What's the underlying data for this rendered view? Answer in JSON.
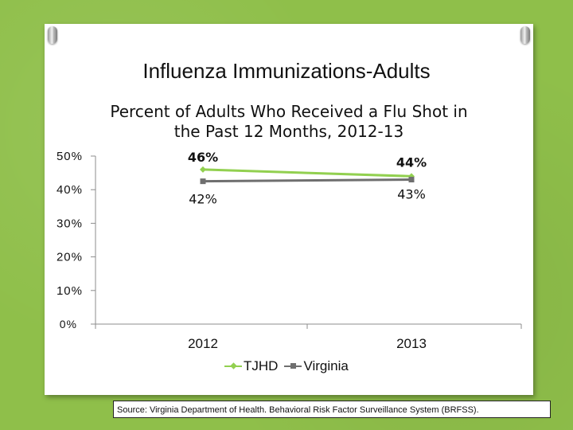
{
  "slide": {
    "title": "Influenza Immunizations-Adults",
    "source": "Source: Virginia Department of Health. Behavioral Risk Factor Surveillance System (BRFSS)."
  },
  "colors": {
    "background": "#8fbf4a",
    "tjhd": "#92d050",
    "virginia": "#6f6f6f"
  },
  "chart_data": {
    "type": "line",
    "title": "Percent of Adults Who Received a Flu Shot in the Past 12 Months, 2012-13",
    "title_lines": [
      "Percent of Adults Who Received a Flu Shot in",
      "the Past 12 Months, 2012-13"
    ],
    "categories": [
      "2012",
      "2013"
    ],
    "ylim": [
      0,
      50
    ],
    "yticks": [
      0,
      10,
      20,
      30,
      40,
      50
    ],
    "ytick_labels": [
      "0%",
      "10%",
      "20%",
      "30%",
      "40%",
      "50%"
    ],
    "grid": false,
    "legend_position": "bottom",
    "series": [
      {
        "name": "TJHD",
        "values": [
          46,
          44
        ],
        "labels": [
          "46%",
          "44%"
        ],
        "marker": "diamond",
        "color": "#92d050"
      },
      {
        "name": "Virginia",
        "values": [
          42.5,
          43
        ],
        "labels": [
          "42%",
          "43%"
        ],
        "marker": "square",
        "color": "#6f6f6f"
      }
    ]
  }
}
